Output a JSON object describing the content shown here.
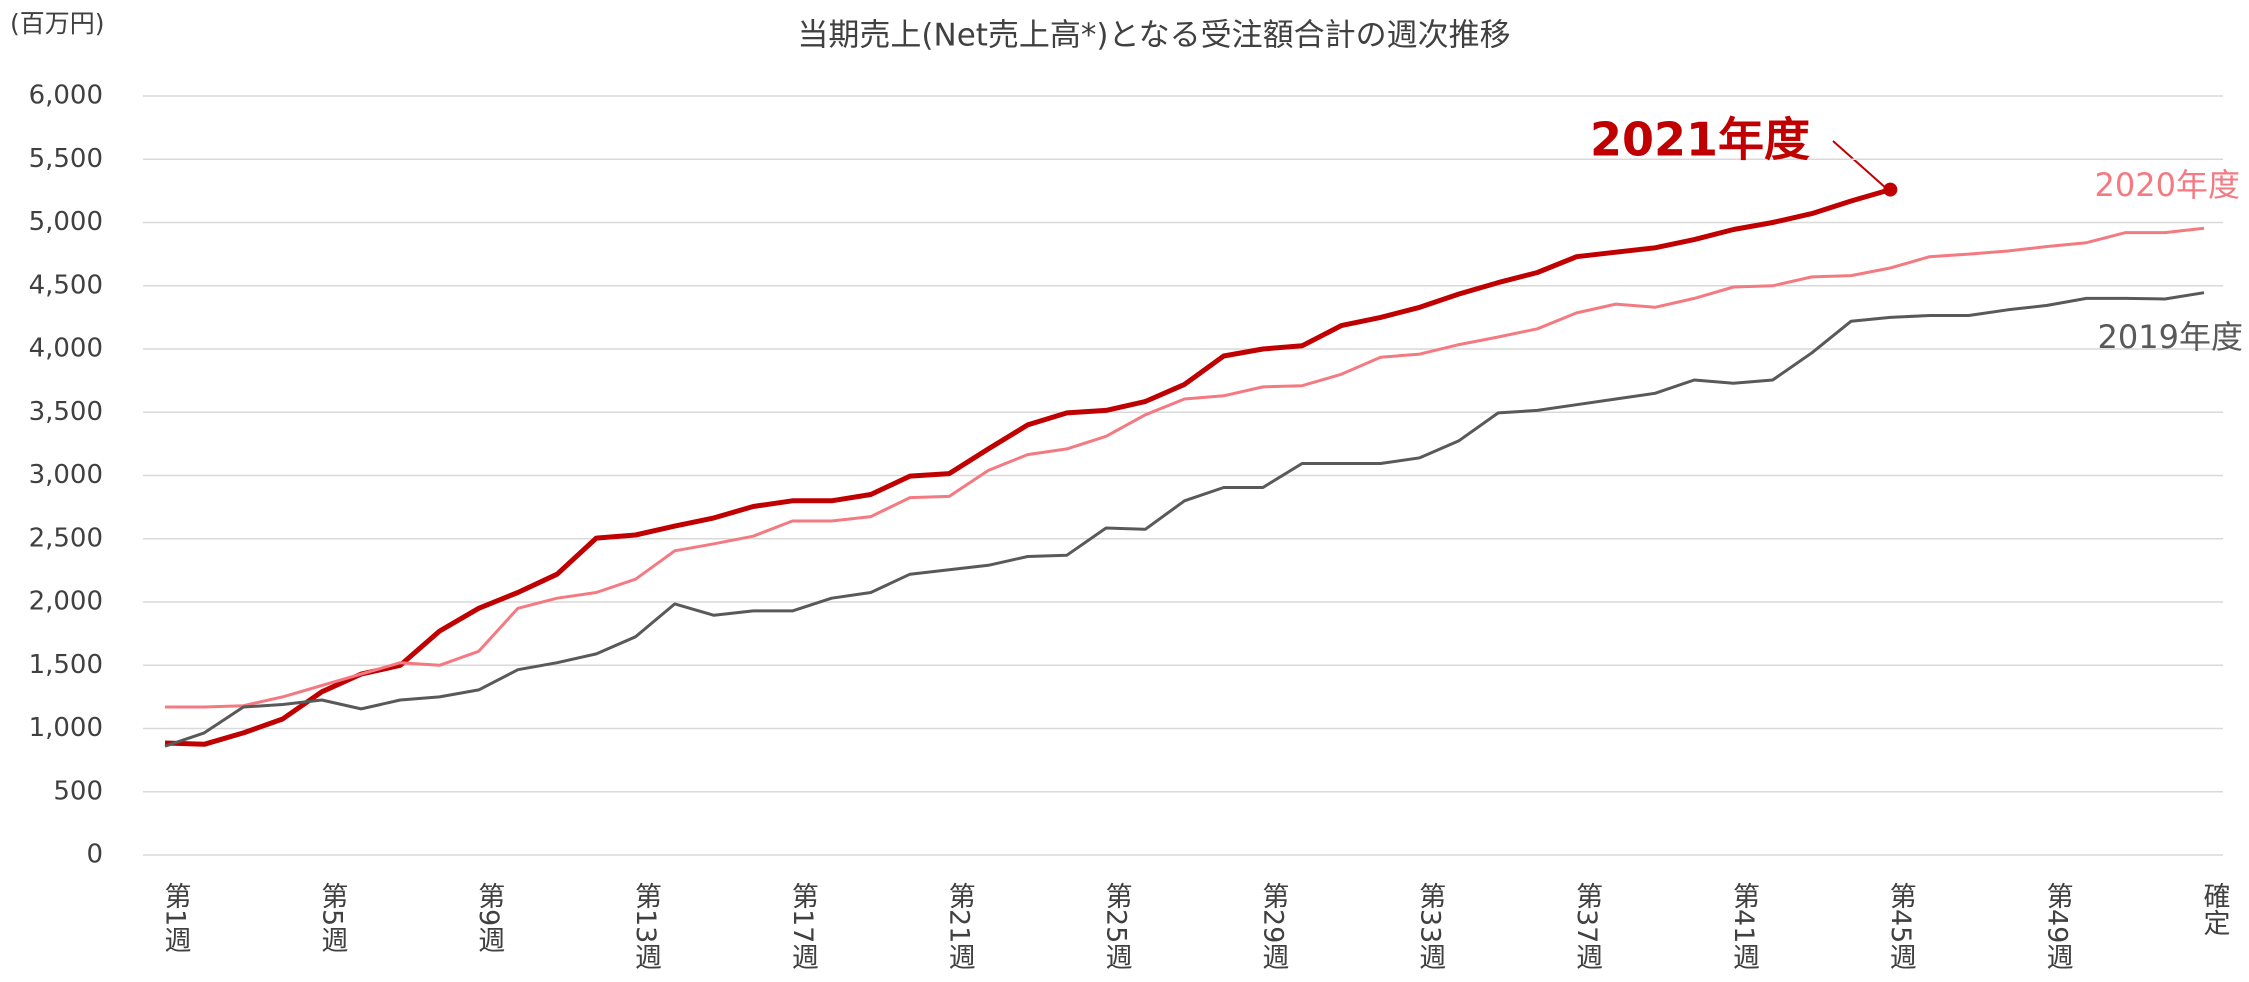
{
  "chart_data": {
    "type": "line",
    "title": "当期売上(Net売上高*)となる受注額合計の週次推移",
    "y_unit_label": "(百万円)",
    "categories": [
      "第1週",
      null,
      null,
      null,
      "第5週",
      null,
      null,
      null,
      "第9週",
      null,
      null,
      null,
      "第13週",
      null,
      null,
      null,
      "第17週",
      null,
      null,
      null,
      "第21週",
      null,
      null,
      null,
      "第25週",
      null,
      null,
      null,
      "第29週",
      null,
      null,
      null,
      "第33週",
      null,
      null,
      null,
      "第37週",
      null,
      null,
      null,
      "第41週",
      null,
      null,
      null,
      "第45週",
      null,
      null,
      null,
      "第49週",
      null,
      null,
      null,
      "確定"
    ],
    "series": [
      {
        "name": "2021年度",
        "color": "#c00000",
        "values": [
          885,
          875,
          965,
          1075,
          1290,
          1430,
          1500,
          1770,
          1950,
          2075,
          2220,
          2505,
          2530,
          2600,
          2665,
          2755,
          2800,
          2800,
          2850,
          2995,
          3015,
          3210,
          3400,
          3495,
          3515,
          3585,
          3720,
          3945,
          4000,
          4025,
          4185,
          4250,
          4330,
          4435,
          4525,
          4605,
          4730,
          4765,
          4800,
          4865,
          4945,
          5000,
          5070,
          5170,
          5260,
          null,
          null,
          null,
          null,
          null,
          null,
          null,
          null
        ]
      },
      {
        "name": "2020年度",
        "color": "#f47a82",
        "values": [
          1170,
          1170,
          1180,
          1250,
          1340,
          1430,
          1520,
          1500,
          1610,
          1950,
          2030,
          2075,
          2180,
          2405,
          2460,
          2520,
          2640,
          2640,
          2675,
          2825,
          2835,
          3040,
          3165,
          3210,
          3310,
          3480,
          3605,
          3630,
          3700,
          3710,
          3800,
          3935,
          3960,
          4035,
          4095,
          4160,
          4285,
          4355,
          4330,
          4400,
          4490,
          4500,
          4570,
          4580,
          4640,
          4730,
          4750,
          4775,
          4810,
          4840,
          4920,
          4920,
          4955
        ]
      },
      {
        "name": "2019年度",
        "color": "#595959",
        "values": [
          860,
          965,
          1170,
          1190,
          1225,
          1155,
          1225,
          1250,
          1305,
          1465,
          1520,
          1590,
          1725,
          1985,
          1895,
          1930,
          1930,
          2030,
          2075,
          2220,
          2255,
          2290,
          2360,
          2370,
          2585,
          2575,
          2800,
          2905,
          2905,
          3095,
          3095,
          3095,
          3140,
          3275,
          3495,
          3515,
          3560,
          3605,
          3650,
          3755,
          3730,
          3755,
          3970,
          4220,
          4250,
          4265,
          4265,
          4310,
          4345,
          4400,
          4400,
          4395,
          4445
        ]
      }
    ],
    "ylim": [
      0,
      6000
    ],
    "yticks": [
      0,
      500,
      {
        "value": 1000,
        "label": "1,000"
      },
      {
        "value": 1500,
        "label": "1,500"
      },
      {
        "value": 2000,
        "label": "2,000"
      },
      {
        "value": 2500,
        "label": "2,500"
      },
      {
        "value": 3000,
        "label": "3,000"
      },
      {
        "value": 3500,
        "label": "3,500"
      },
      {
        "value": 4000,
        "label": "4,000"
      },
      {
        "value": 4500,
        "label": "4,500"
      },
      {
        "value": 5000,
        "label": "5,000"
      },
      {
        "value": 5500,
        "label": "5,500"
      },
      {
        "value": 6000,
        "label": "6,000"
      }
    ],
    "grid": true
  }
}
